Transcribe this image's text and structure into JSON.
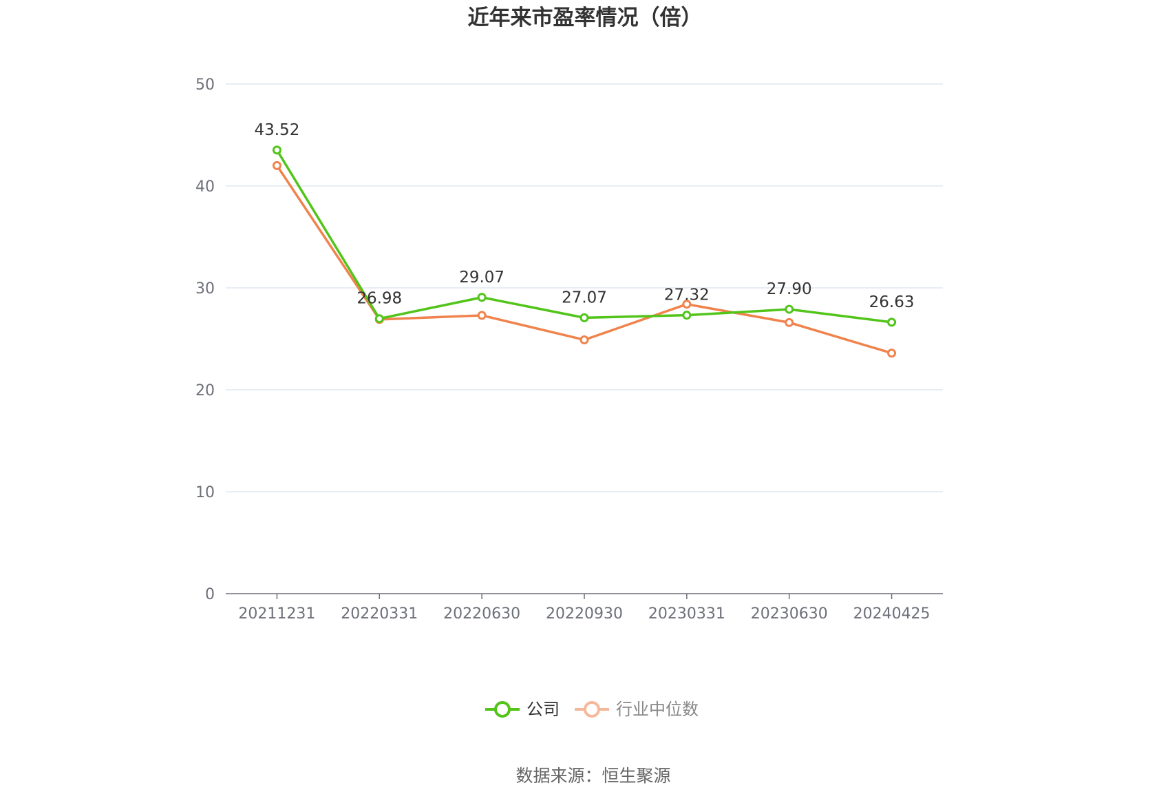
{
  "chart_data": {
    "type": "line",
    "title": "近年来市盈率情况（倍）",
    "categories": [
      "20211231",
      "20220331",
      "20220630",
      "20220930",
      "20230331",
      "20230630",
      "20240425"
    ],
    "ylim": [
      0,
      50
    ],
    "yticks": [
      0,
      10,
      20,
      30,
      40,
      50
    ],
    "grid": true,
    "legend_position": "bottom-center",
    "series": [
      {
        "name": "公司",
        "color": "#52c41a",
        "values": [
          43.52,
          26.98,
          29.07,
          27.07,
          27.32,
          27.9,
          26.63
        ],
        "labels": [
          "43.52",
          "26.98",
          "29.07",
          "27.07",
          "27.32",
          "27.90",
          "26.63"
        ]
      },
      {
        "name": "行业中位数",
        "color": "#f0834d",
        "legend_color": "#f7b79b",
        "values": [
          42.0,
          26.9,
          27.3,
          24.9,
          28.4,
          26.6,
          23.6
        ]
      }
    ],
    "source": "数据来源：恒生聚源"
  }
}
